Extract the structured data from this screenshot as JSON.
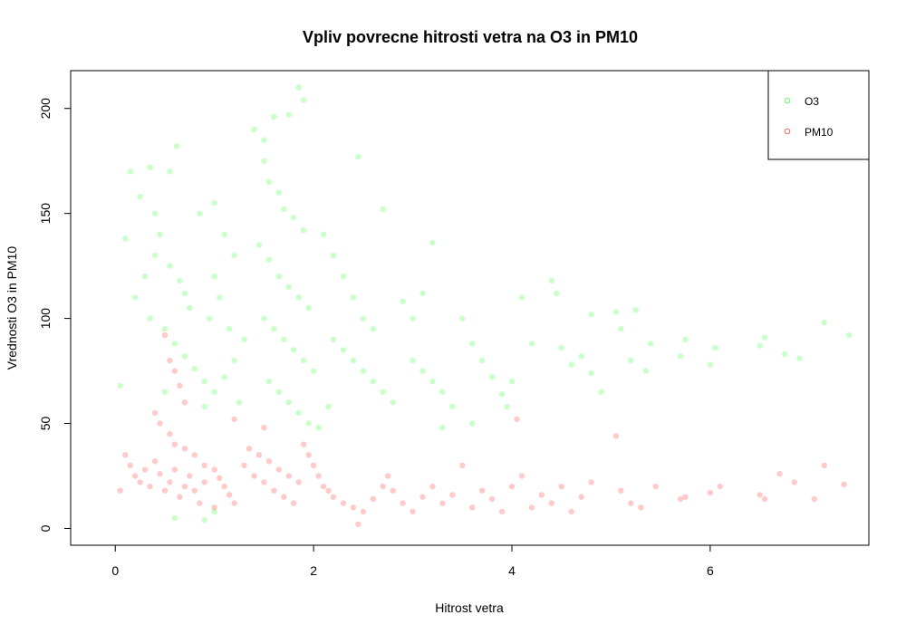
{
  "chart_data": {
    "type": "scatter",
    "title": "Vpliv povrecne hitrosti vetra na O3 in PM10",
    "xlabel": "Hitrost vetra",
    "ylabel": "Vrednosti O3 in PM10",
    "xlim": [
      -0.45,
      7.6
    ],
    "ylim": [
      -8,
      218
    ],
    "xticks": [
      0,
      2,
      4,
      6
    ],
    "yticks": [
      0,
      50,
      100,
      150,
      200
    ],
    "grid": false,
    "legend_position": "top-right",
    "series": [
      {
        "name": "O3",
        "color": "#66ff66",
        "points": [
          [
            0.1,
            138
          ],
          [
            0.15,
            170
          ],
          [
            0.25,
            158
          ],
          [
            0.35,
            172
          ],
          [
            0.55,
            170
          ],
          [
            0.62,
            182
          ],
          [
            0.4,
            150
          ],
          [
            0.45,
            140
          ],
          [
            0.55,
            125
          ],
          [
            0.65,
            118
          ],
          [
            0.7,
            112
          ],
          [
            0.75,
            105
          ],
          [
            0.5,
            95
          ],
          [
            0.6,
            88
          ],
          [
            0.7,
            82
          ],
          [
            0.8,
            76
          ],
          [
            0.9,
            70
          ],
          [
            0.5,
            65
          ],
          [
            0.3,
            120
          ],
          [
            0.2,
            110
          ],
          [
            0.35,
            100
          ],
          [
            0.4,
            130
          ],
          [
            0.85,
            150
          ],
          [
            1.0,
            155
          ],
          [
            1.1,
            140
          ],
          [
            1.2,
            130
          ],
          [
            1.0,
            120
          ],
          [
            1.05,
            110
          ],
          [
            0.95,
            100
          ],
          [
            1.15,
            95
          ],
          [
            1.3,
            90
          ],
          [
            1.2,
            80
          ],
          [
            1.1,
            72
          ],
          [
            1.0,
            65
          ],
          [
            1.25,
            60
          ],
          [
            0.9,
            58
          ],
          [
            1.4,
            190
          ],
          [
            1.5,
            185
          ],
          [
            1.6,
            196
          ],
          [
            1.75,
            197
          ],
          [
            1.85,
            210
          ],
          [
            1.9,
            204
          ],
          [
            1.5,
            175
          ],
          [
            1.55,
            165
          ],
          [
            1.65,
            160
          ],
          [
            1.7,
            152
          ],
          [
            1.8,
            148
          ],
          [
            1.9,
            142
          ],
          [
            1.45,
            135
          ],
          [
            1.55,
            128
          ],
          [
            1.65,
            120
          ],
          [
            1.75,
            115
          ],
          [
            1.85,
            110
          ],
          [
            1.95,
            105
          ],
          [
            1.5,
            100
          ],
          [
            1.6,
            95
          ],
          [
            1.7,
            90
          ],
          [
            1.8,
            85
          ],
          [
            1.9,
            80
          ],
          [
            2.0,
            75
          ],
          [
            1.55,
            70
          ],
          [
            1.65,
            65
          ],
          [
            1.75,
            60
          ],
          [
            1.85,
            55
          ],
          [
            1.95,
            50
          ],
          [
            2.05,
            48
          ],
          [
            2.1,
            140
          ],
          [
            2.2,
            130
          ],
          [
            2.3,
            120
          ],
          [
            2.4,
            110
          ],
          [
            2.5,
            100
          ],
          [
            2.6,
            95
          ],
          [
            2.45,
            177
          ],
          [
            2.7,
            152
          ],
          [
            2.2,
            90
          ],
          [
            2.3,
            85
          ],
          [
            2.4,
            80
          ],
          [
            2.5,
            75
          ],
          [
            2.6,
            70
          ],
          [
            2.7,
            65
          ],
          [
            2.8,
            60
          ],
          [
            2.9,
            108
          ],
          [
            3.0,
            100
          ],
          [
            3.1,
            112
          ],
          [
            3.2,
            136
          ],
          [
            3.0,
            80
          ],
          [
            3.1,
            75
          ],
          [
            3.2,
            70
          ],
          [
            3.3,
            65
          ],
          [
            3.4,
            58
          ],
          [
            3.5,
            100
          ],
          [
            3.6,
            88
          ],
          [
            3.7,
            80
          ],
          [
            3.8,
            72
          ],
          [
            3.9,
            64
          ],
          [
            3.6,
            50
          ],
          [
            3.3,
            48
          ],
          [
            4.0,
            70
          ],
          [
            4.1,
            110
          ],
          [
            4.2,
            88
          ],
          [
            4.4,
            118
          ],
          [
            4.45,
            112
          ],
          [
            4.5,
            86
          ],
          [
            4.6,
            78
          ],
          [
            4.7,
            82
          ],
          [
            4.8,
            74
          ],
          [
            4.8,
            102
          ],
          [
            5.05,
            103
          ],
          [
            5.1,
            95
          ],
          [
            5.2,
            80
          ],
          [
            5.25,
            104
          ],
          [
            5.35,
            75
          ],
          [
            5.4,
            88
          ],
          [
            5.7,
            82
          ],
          [
            5.75,
            90
          ],
          [
            6.0,
            78
          ],
          [
            6.05,
            86
          ],
          [
            6.5,
            87
          ],
          [
            6.55,
            91
          ],
          [
            6.75,
            83
          ],
          [
            6.9,
            81
          ],
          [
            7.15,
            98
          ],
          [
            7.4,
            92
          ],
          [
            4.9,
            65
          ],
          [
            3.95,
            58
          ],
          [
            2.15,
            58
          ],
          [
            0.05,
            68
          ],
          [
            0.6,
            5
          ],
          [
            0.9,
            4
          ],
          [
            1.0,
            8
          ]
        ]
      },
      {
        "name": "PM10",
        "color": "#ff6666",
        "points": [
          [
            0.05,
            18
          ],
          [
            0.1,
            35
          ],
          [
            0.15,
            30
          ],
          [
            0.2,
            25
          ],
          [
            0.25,
            22
          ],
          [
            0.3,
            28
          ],
          [
            0.35,
            20
          ],
          [
            0.4,
            32
          ],
          [
            0.45,
            26
          ],
          [
            0.5,
            18
          ],
          [
            0.55,
            22
          ],
          [
            0.6,
            28
          ],
          [
            0.65,
            15
          ],
          [
            0.7,
            20
          ],
          [
            0.75,
            25
          ],
          [
            0.8,
            18
          ],
          [
            0.85,
            12
          ],
          [
            0.9,
            22
          ],
          [
            0.5,
            92
          ],
          [
            0.55,
            80
          ],
          [
            0.6,
            75
          ],
          [
            0.65,
            68
          ],
          [
            0.7,
            60
          ],
          [
            0.4,
            55
          ],
          [
            0.45,
            50
          ],
          [
            0.55,
            45
          ],
          [
            0.6,
            40
          ],
          [
            0.7,
            38
          ],
          [
            0.8,
            35
          ],
          [
            0.9,
            30
          ],
          [
            1.0,
            28
          ],
          [
            1.05,
            24
          ],
          [
            1.1,
            20
          ],
          [
            1.15,
            16
          ],
          [
            1.2,
            12
          ],
          [
            1.0,
            10
          ],
          [
            1.3,
            30
          ],
          [
            1.4,
            25
          ],
          [
            1.5,
            22
          ],
          [
            1.6,
            18
          ],
          [
            1.7,
            15
          ],
          [
            1.8,
            12
          ],
          [
            1.35,
            38
          ],
          [
            1.45,
            35
          ],
          [
            1.55,
            32
          ],
          [
            1.65,
            28
          ],
          [
            1.75,
            25
          ],
          [
            1.85,
            22
          ],
          [
            1.9,
            40
          ],
          [
            1.95,
            35
          ],
          [
            2.0,
            30
          ],
          [
            2.05,
            25
          ],
          [
            2.1,
            20
          ],
          [
            2.15,
            18
          ],
          [
            2.2,
            15
          ],
          [
            2.3,
            12
          ],
          [
            2.4,
            10
          ],
          [
            2.5,
            8
          ],
          [
            2.6,
            14
          ],
          [
            2.7,
            20
          ],
          [
            2.75,
            25
          ],
          [
            2.8,
            18
          ],
          [
            2.9,
            12
          ],
          [
            3.0,
            8
          ],
          [
            3.1,
            15
          ],
          [
            3.2,
            20
          ],
          [
            3.3,
            12
          ],
          [
            3.4,
            16
          ],
          [
            3.5,
            30
          ],
          [
            3.6,
            10
          ],
          [
            3.7,
            18
          ],
          [
            3.8,
            14
          ],
          [
            3.9,
            8
          ],
          [
            4.0,
            20
          ],
          [
            4.1,
            25
          ],
          [
            4.05,
            52
          ],
          [
            4.2,
            10
          ],
          [
            4.3,
            16
          ],
          [
            4.4,
            12
          ],
          [
            4.5,
            20
          ],
          [
            4.6,
            8
          ],
          [
            4.7,
            15
          ],
          [
            4.8,
            22
          ],
          [
            5.05,
            44
          ],
          [
            5.1,
            18
          ],
          [
            5.2,
            12
          ],
          [
            5.3,
            10
          ],
          [
            5.45,
            20
          ],
          [
            5.7,
            14
          ],
          [
            5.75,
            15
          ],
          [
            6.0,
            17
          ],
          [
            6.1,
            20
          ],
          [
            6.5,
            16
          ],
          [
            6.55,
            14
          ],
          [
            6.7,
            26
          ],
          [
            6.85,
            22
          ],
          [
            7.05,
            14
          ],
          [
            7.15,
            30
          ],
          [
            7.35,
            21
          ],
          [
            2.45,
            2
          ],
          [
            1.2,
            52
          ],
          [
            1.5,
            48
          ]
        ]
      }
    ]
  }
}
